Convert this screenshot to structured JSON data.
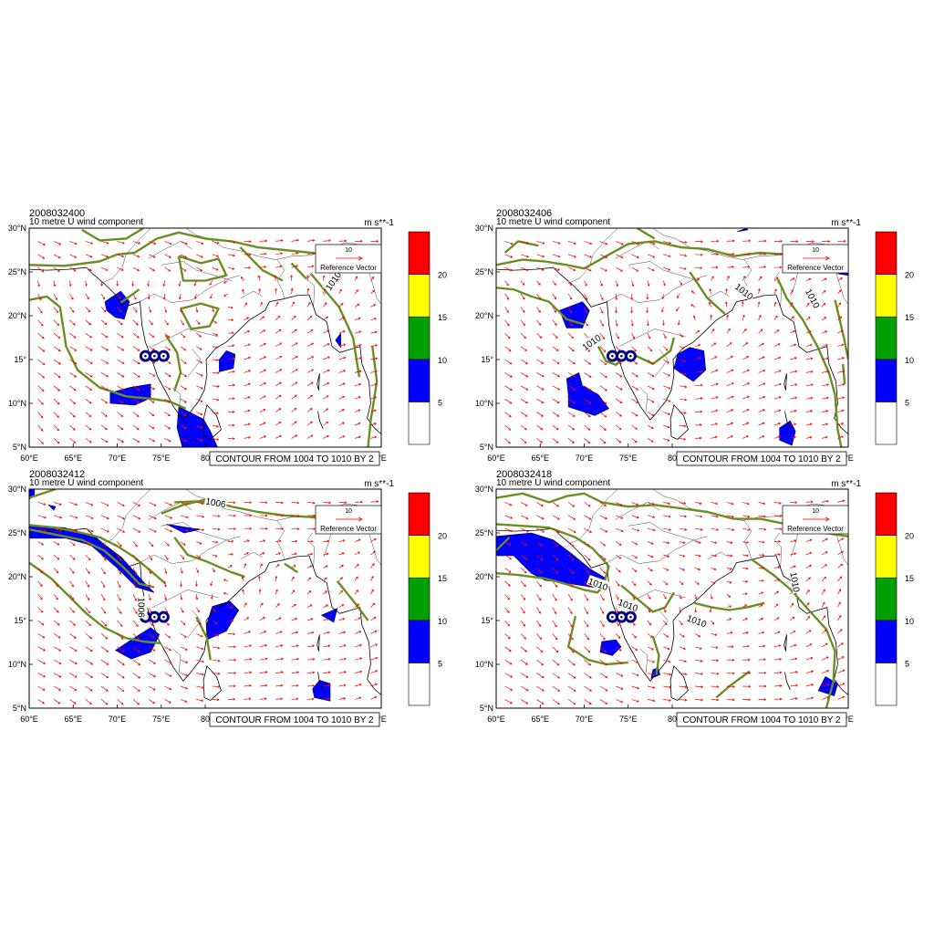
{
  "figure": {
    "panels": [
      {
        "timestamp": "2008032400",
        "variable": "10 metre U wind component",
        "units": "m s**-1",
        "contour_label": "CONTOUR FROM 1004 TO 1010 BY 2",
        "ref_vector": {
          "value": "10",
          "label": "Reference Vector"
        },
        "isobar_labels": [
          "1010"
        ]
      },
      {
        "timestamp": "2008032406",
        "variable": "10 metre U wind component",
        "units": "m s**-1",
        "contour_label": "CONTOUR FROM 1004 TO 1010 BY 2",
        "ref_vector": {
          "value": "10",
          "label": "Reference Vector"
        },
        "isobar_labels": [
          "1010",
          "1010",
          "1010"
        ]
      },
      {
        "timestamp": "2008032412",
        "variable": "10 metre U wind component",
        "units": "m s**-1",
        "contour_label": "CONTOUR FROM 1004 TO 1010 BY 2",
        "ref_vector": {
          "value": "10",
          "label": "Reference Vector"
        },
        "isobar_labels": [
          "1006",
          "1006"
        ]
      },
      {
        "timestamp": "2008032418",
        "variable": "10 metre U wind component",
        "units": "m s**-1",
        "contour_label": "CONTOUR FROM 1004 TO 1010 BY 2",
        "ref_vector": {
          "value": "10",
          "label": "Reference Vector"
        },
        "isobar_labels": [
          "1010",
          "1010",
          "1010",
          "1010"
        ]
      }
    ],
    "axes": {
      "lat_ticks": [
        "5°N",
        "10°N",
        "15°",
        "20°N",
        "25°N",
        "30°N"
      ],
      "lon_ticks": [
        "60°E",
        "65°E",
        "70°E",
        "75°E",
        "80"
      ],
      "lon_last_suffix": "°E",
      "lon_range": [
        60,
        100
      ],
      "lat_range": [
        5,
        30
      ]
    },
    "colorbar": {
      "levels": [
        "5",
        "10",
        "15",
        "20"
      ],
      "colors": [
        "#ffffff",
        "#0000ff",
        "#00a000",
        "#ffff00",
        "#ff0000"
      ]
    },
    "colors": {
      "isobar": "#6b8e23",
      "wind_arrow": "#ff0000",
      "wind_fill": "#0000ff",
      "marker": "#000080"
    },
    "station_markers": 3
  }
}
